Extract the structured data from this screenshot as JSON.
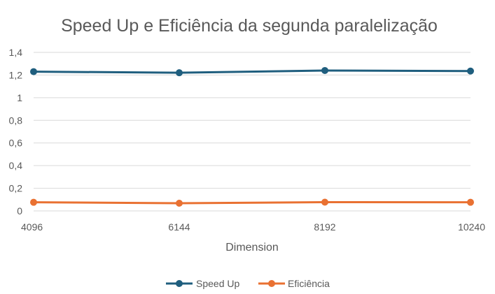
{
  "chart_data": {
    "type": "line",
    "title": "Speed Up e Eficiência da segunda paralelização",
    "xlabel": "Dimension",
    "ylabel": "",
    "categories": [
      "4096",
      "6144",
      "8192",
      "10240"
    ],
    "ylim": [
      0,
      1.4
    ],
    "yticks": [
      "0",
      "0,2",
      "0,4",
      "0,6",
      "0,8",
      "1",
      "1,2",
      "1,4"
    ],
    "grid": true,
    "legend_position": "bottom",
    "series": [
      {
        "name": "Speed Up",
        "values": [
          1.23,
          1.22,
          1.24,
          1.235
        ],
        "color": "#1f5e7e"
      },
      {
        "name": "Eficiência",
        "values": [
          0.076,
          0.068,
          0.077,
          0.076
        ],
        "color": "#e97132"
      }
    ]
  }
}
